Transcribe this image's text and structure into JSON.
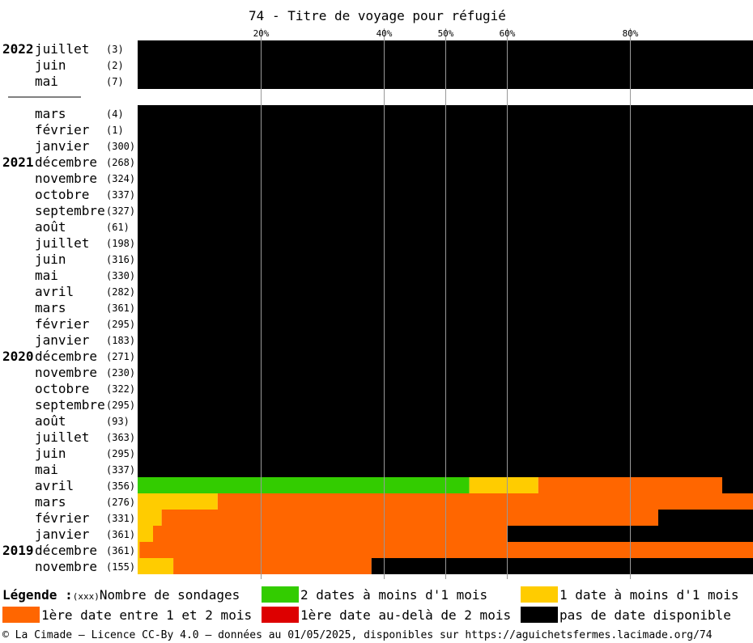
{
  "chart_data": {
    "type": "bar",
    "stacked": true,
    "orientation": "horizontal",
    "title": "74 - Titre de voyage pour réfugié",
    "x_ticks": [
      {
        "value": 20,
        "label": "20%"
      },
      {
        "value": 40,
        "label": "40%"
      },
      {
        "value": 50,
        "label": "50%"
      },
      {
        "value": 60,
        "label": "60%"
      },
      {
        "value": 80,
        "label": "80%"
      }
    ],
    "xlim": [
      0,
      100
    ],
    "series": [
      {
        "key": "green",
        "color": "#33cc00"
      },
      {
        "key": "yellow",
        "color": "#ffcc00"
      },
      {
        "key": "orange",
        "color": "#ff6600"
      },
      {
        "key": "red",
        "color": "#dd0000"
      },
      {
        "key": "black",
        "color": "#000000"
      }
    ],
    "rows": [
      {
        "year": "2022",
        "month": "juillet",
        "count": "(3)",
        "values": [
          0,
          0,
          0,
          0,
          100
        ]
      },
      {
        "year": "",
        "month": "juin",
        "count": "(2)",
        "values": [
          0,
          0,
          0,
          0,
          100
        ]
      },
      {
        "year": "",
        "month": "mai",
        "count": "(7)",
        "values": [
          0,
          0,
          0,
          0,
          100
        ]
      },
      {
        "separator": true
      },
      {
        "year": "",
        "month": "mars",
        "count": "(4)",
        "values": [
          0,
          0,
          0,
          0,
          100
        ]
      },
      {
        "year": "",
        "month": "février",
        "count": "(1)",
        "values": [
          0,
          0,
          0,
          0,
          100
        ]
      },
      {
        "year": "",
        "month": "janvier",
        "count": "(300)",
        "values": [
          0,
          0,
          0,
          0,
          100
        ]
      },
      {
        "year": "2021",
        "month": "décembre",
        "count": "(268)",
        "values": [
          0,
          0,
          0,
          0,
          100
        ]
      },
      {
        "year": "",
        "month": "novembre",
        "count": "(324)",
        "values": [
          0,
          0,
          0,
          0,
          100
        ]
      },
      {
        "year": "",
        "month": "octobre",
        "count": "(337)",
        "values": [
          0,
          0,
          0,
          0,
          100
        ]
      },
      {
        "year": "",
        "month": "septembre",
        "count": "(327)",
        "values": [
          0,
          0,
          0,
          0,
          100
        ]
      },
      {
        "year": "",
        "month": "août",
        "count": "(61)",
        "values": [
          0,
          0,
          0,
          0,
          100
        ]
      },
      {
        "year": "",
        "month": "juillet",
        "count": "(198)",
        "values": [
          0,
          0,
          0,
          0,
          100
        ]
      },
      {
        "year": "",
        "month": "juin",
        "count": "(316)",
        "values": [
          0,
          0,
          0,
          0,
          100
        ]
      },
      {
        "year": "",
        "month": "mai",
        "count": "(330)",
        "values": [
          0,
          0,
          0,
          0,
          100
        ]
      },
      {
        "year": "",
        "month": "avril",
        "count": "(282)",
        "values": [
          0,
          0,
          0,
          0,
          100
        ]
      },
      {
        "year": "",
        "month": "mars",
        "count": "(361)",
        "values": [
          0,
          0,
          0,
          0,
          100
        ]
      },
      {
        "year": "",
        "month": "février",
        "count": "(295)",
        "values": [
          0,
          0,
          0,
          0,
          100
        ]
      },
      {
        "year": "",
        "month": "janvier",
        "count": "(183)",
        "values": [
          0,
          0,
          0,
          0,
          100
        ]
      },
      {
        "year": "2020",
        "month": "décembre",
        "count": "(271)",
        "values": [
          0,
          0,
          0,
          0,
          100
        ]
      },
      {
        "year": "",
        "month": "novembre",
        "count": "(230)",
        "values": [
          0,
          0,
          0,
          0,
          100
        ]
      },
      {
        "year": "",
        "month": "octobre",
        "count": "(322)",
        "values": [
          0,
          0,
          0,
          0,
          100
        ]
      },
      {
        "year": "",
        "month": "septembre",
        "count": "(295)",
        "values": [
          0,
          0,
          0,
          0,
          100
        ]
      },
      {
        "year": "",
        "month": "août",
        "count": "(93)",
        "values": [
          0,
          0,
          0,
          0,
          100
        ]
      },
      {
        "year": "",
        "month": "juillet",
        "count": "(363)",
        "values": [
          0,
          0,
          0,
          0,
          100
        ]
      },
      {
        "year": "",
        "month": "juin",
        "count": "(295)",
        "values": [
          0,
          0,
          0,
          0,
          100
        ]
      },
      {
        "year": "",
        "month": "mai",
        "count": "(337)",
        "values": [
          0,
          0,
          0,
          0,
          100
        ]
      },
      {
        "year": "",
        "month": "avril",
        "count": "(356)",
        "values": [
          53.9,
          11.2,
          29.9,
          0,
          5.0
        ]
      },
      {
        "year": "",
        "month": "mars",
        "count": "(276)",
        "values": [
          0,
          13.0,
          87.0,
          0,
          0
        ]
      },
      {
        "year": "",
        "month": "février",
        "count": "(331)",
        "values": [
          0,
          3.9,
          80.7,
          0,
          15.4
        ]
      },
      {
        "year": "",
        "month": "janvier",
        "count": "(361)",
        "values": [
          0,
          2.5,
          57.6,
          0,
          39.9
        ]
      },
      {
        "year": "2019",
        "month": "décembre",
        "count": "(361)",
        "values": [
          0,
          0.3,
          99.7,
          0,
          0
        ]
      },
      {
        "year": "",
        "month": "novembre",
        "count": "(155)",
        "values": [
          0,
          5.8,
          32.2,
          0,
          62.0
        ]
      }
    ]
  },
  "legend": {
    "title": "Légende :",
    "count_hint": "(xxx)",
    "count_label": "Nombre de sondages",
    "items": [
      {
        "label": "2 dates à moins d'1 mois",
        "color": "#33cc00"
      },
      {
        "label": "1 date à moins d'1 mois",
        "color": "#ffcc00"
      },
      {
        "label": "1ère date entre 1 et 2 mois",
        "color": "#ff6600"
      },
      {
        "label": "1ère date au-delà de 2 mois",
        "color": "#dd0000"
      },
      {
        "label": "pas de date disponible",
        "color": "#000000"
      }
    ]
  },
  "footer": "© La Cimade — Licence CC-By 4.0 — données au 01/05/2025, disponibles sur https://aguichetsfermes.lacimade.org/74"
}
